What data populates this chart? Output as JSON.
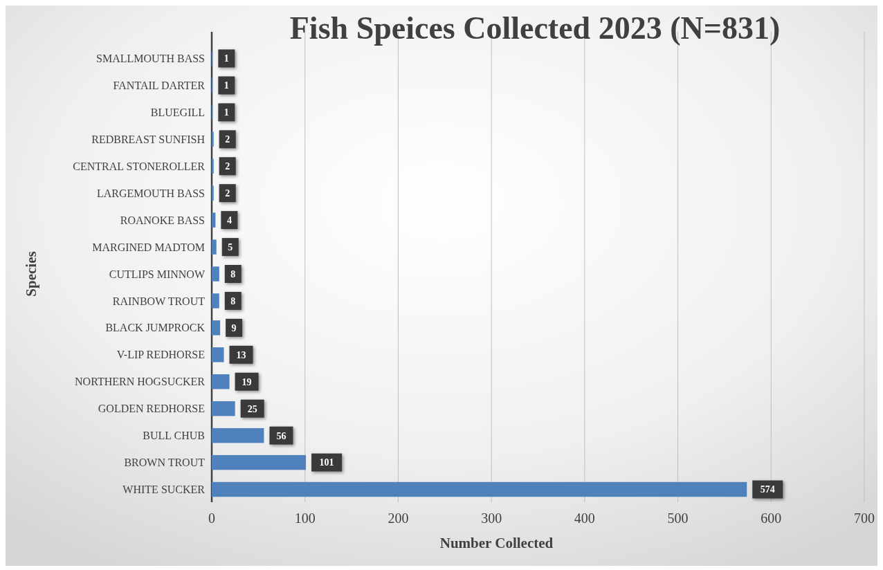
{
  "chart_data": {
    "type": "bar",
    "orientation": "horizontal",
    "title": "Fish Speices Collected 2023 (N=831)",
    "xlabel": "Number Collected",
    "ylabel": "Species",
    "categories": [
      "SMALLMOUTH BASS",
      "FANTAIL DARTER",
      "BLUEGILL",
      "REDBREAST SUNFISH",
      "CENTRAL STONEROLLER",
      "LARGEMOUTH BASS",
      "ROANOKE BASS",
      "MARGINED MADTOM",
      "CUTLIPS MINNOW",
      "RAINBOW TROUT",
      "BLACK JUMPROCK",
      "V-LIP REDHORSE",
      "NORTHERN HOGSUCKER",
      "GOLDEN REDHORSE",
      "BULL CHUB",
      "BROWN TROUT",
      "WHITE SUCKER"
    ],
    "values": [
      1,
      1,
      1,
      2,
      2,
      2,
      4,
      5,
      8,
      8,
      9,
      13,
      19,
      25,
      56,
      101,
      574
    ],
    "color": "#4f81bd",
    "xlim": [
      0,
      700
    ],
    "xticks": [
      0,
      100,
      200,
      300,
      400,
      500,
      600,
      700
    ],
    "grid": "x",
    "data_labels": true
  }
}
